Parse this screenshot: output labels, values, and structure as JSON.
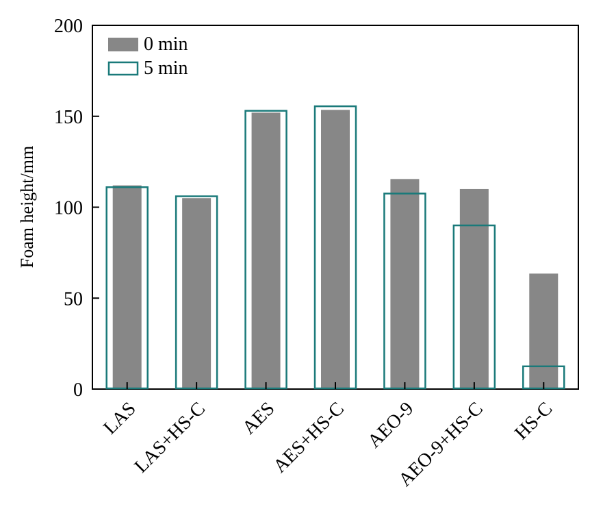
{
  "chart_data": {
    "type": "bar",
    "title": "",
    "xlabel": "",
    "ylabel": "Foam height/mm",
    "ylim": [
      0,
      200
    ],
    "yticks": [
      0,
      50,
      100,
      150,
      200
    ],
    "grid": false,
    "legend_position": "top-left",
    "categories": [
      "LAS",
      "LAS+HS-C",
      "AES",
      "AES+HS-C",
      "AEO-9",
      "AEO-9+HS-C",
      "HS-C"
    ],
    "series": [
      {
        "name": "0 min",
        "style": "filled",
        "color": "#878787",
        "values": [
          112,
          105,
          152,
          153.5,
          115.5,
          110,
          63.5
        ]
      },
      {
        "name": "5 min",
        "style": "outline",
        "color": "#1a7a7a",
        "values": [
          111,
          106,
          153,
          155.5,
          107.5,
          90,
          12.5
        ]
      }
    ]
  }
}
